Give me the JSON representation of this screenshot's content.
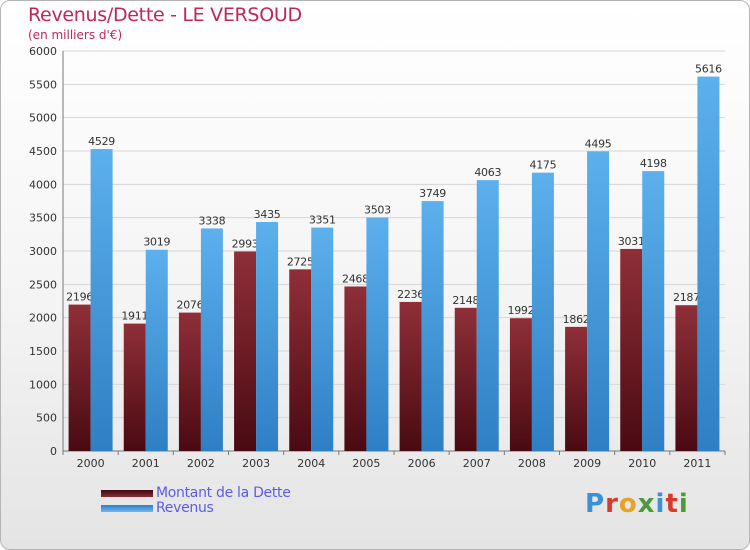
{
  "chart_data": {
    "type": "bar",
    "title": "Revenus/Dette - LE VERSOUD",
    "subtitle": "(en milliers d'€)",
    "categories": [
      "2000",
      "2001",
      "2002",
      "2003",
      "2004",
      "2005",
      "2006",
      "2007",
      "2008",
      "2009",
      "2010",
      "2011"
    ],
    "series": [
      {
        "name": "Montant de la Dette",
        "color": "#7a1f28",
        "values": [
          2196,
          1911,
          2076,
          2993,
          2725,
          2468,
          2236,
          2148,
          1992,
          1862,
          3031,
          2187
        ]
      },
      {
        "name": "Revenus",
        "color": "#57a8e4",
        "values": [
          4529,
          3019,
          3338,
          3435,
          3351,
          3503,
          3749,
          4063,
          4175,
          4495,
          4198,
          5616
        ]
      }
    ],
    "ylim": [
      0,
      6000
    ],
    "yticks": [
      0,
      500,
      1000,
      1500,
      2000,
      2500,
      3000,
      3500,
      4000,
      4500,
      5000,
      5500,
      6000
    ],
    "grid": true,
    "legend_position": "bottom-left"
  },
  "branding": {
    "logo_letters": [
      {
        "ch": "P",
        "color": "#3d8fd6"
      },
      {
        "ch": "r",
        "color": "#d8392c"
      },
      {
        "ch": "o",
        "color": "#e8a325"
      },
      {
        "ch": "x",
        "color": "#4e9a3a"
      },
      {
        "ch": "i",
        "color": "#3d8fd6"
      },
      {
        "ch": "t",
        "color": "#d8392c"
      },
      {
        "ch": "i",
        "color": "#4e9a3a"
      }
    ]
  }
}
